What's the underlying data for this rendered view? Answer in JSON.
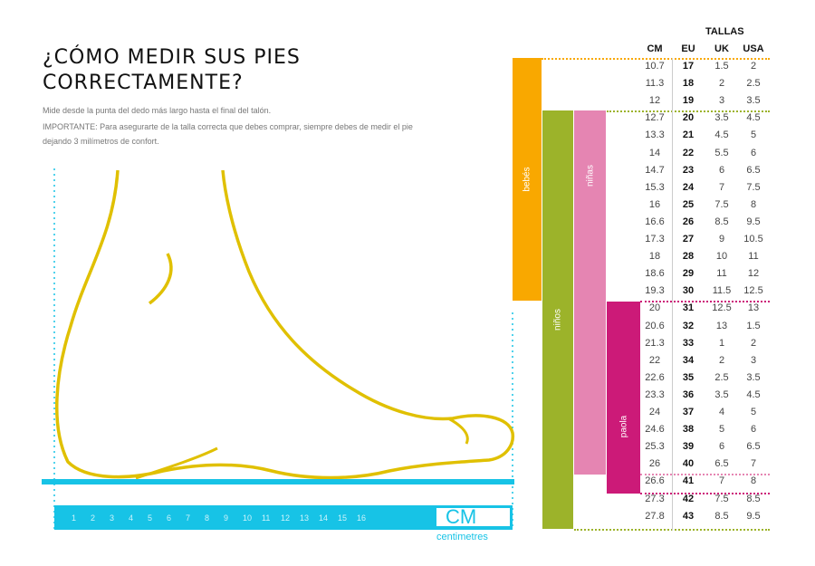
{
  "title_line1": "¿CÓMO MEDIR SUS PIES",
  "title_line2": "CORRECTAMENTE?",
  "instruction": "Mide desde la punta del dedo más largo hasta el final del talón.",
  "important_line1": "IMPORTANTE: Para asegurarte de la talla correcta que debes comprar, siempre debes de medir el pie",
  "important_line2": "dejando 3 milímetros de confort.",
  "ruler": {
    "numbers": [
      "1",
      "2",
      "3",
      "4",
      "5",
      "6",
      "7",
      "8",
      "9",
      "10",
      "11",
      "12",
      "13",
      "14",
      "15",
      "16"
    ],
    "unit": "CM",
    "unit_label": "centimetres"
  },
  "table": {
    "title": "TALLAS",
    "headers": [
      "CM",
      "EU",
      "UK",
      "USA"
    ],
    "rows": [
      [
        "10.7",
        "17",
        "1.5",
        "2"
      ],
      [
        "11.3",
        "18",
        "2",
        "2.5"
      ],
      [
        "12",
        "19",
        "3",
        "3.5"
      ],
      [
        "12.7",
        "20",
        "3.5",
        "4.5"
      ],
      [
        "13.3",
        "21",
        "4.5",
        "5"
      ],
      [
        "14",
        "22",
        "5.5",
        "6"
      ],
      [
        "14.7",
        "23",
        "6",
        "6.5"
      ],
      [
        "15.3",
        "24",
        "7",
        "7.5"
      ],
      [
        "16",
        "25",
        "7.5",
        "8"
      ],
      [
        "16.6",
        "26",
        "8.5",
        "9.5"
      ],
      [
        "17.3",
        "27",
        "9",
        "10.5"
      ],
      [
        "18",
        "28",
        "10",
        "11"
      ],
      [
        "18.6",
        "29",
        "11",
        "12"
      ],
      [
        "19.3",
        "30",
        "11.5",
        "12.5"
      ],
      [
        "20",
        "31",
        "12.5",
        "13"
      ],
      [
        "20.6",
        "32",
        "13",
        "1.5"
      ],
      [
        "21.3",
        "33",
        "1",
        "2"
      ],
      [
        "22",
        "34",
        "2",
        "3"
      ],
      [
        "22.6",
        "35",
        "2.5",
        "3.5"
      ],
      [
        "23.3",
        "36",
        "3.5",
        "4.5"
      ],
      [
        "24",
        "37",
        "4",
        "5"
      ],
      [
        "24.6",
        "38",
        "5",
        "6"
      ],
      [
        "25.3",
        "39",
        "6",
        "6.5"
      ],
      [
        "26",
        "40",
        "6.5",
        "7"
      ],
      [
        "26.6",
        "41",
        "7",
        "8"
      ],
      [
        "27.3",
        "42",
        "7.5",
        "8.5"
      ],
      [
        "27.8",
        "43",
        "8.5",
        "9.5"
      ]
    ]
  },
  "categories": [
    {
      "label": "bebés",
      "color": "#f9a800"
    },
    {
      "label": "niños",
      "color": "#9cb32a"
    },
    {
      "label": "niñas",
      "color": "#e585b2"
    },
    {
      "label": "paola",
      "color": "#cc1a78"
    }
  ],
  "colors": {
    "ruler": "#17c3e6",
    "foot": "#e0c000"
  }
}
